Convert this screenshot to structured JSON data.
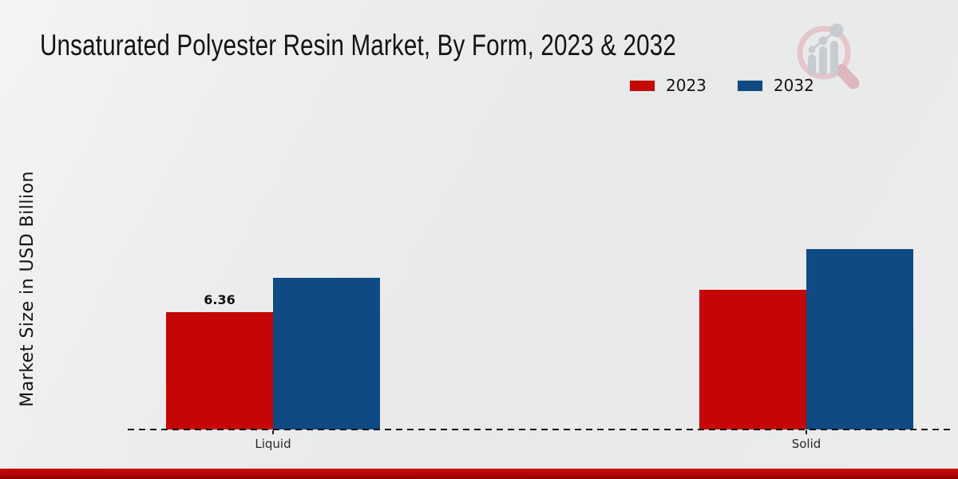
{
  "header": {
    "title": "Unsaturated Polyester Resin Market, By Form, 2023 & 2032"
  },
  "branding": {
    "logo_icon": "magnifier-growth-chart-logo"
  },
  "colors": {
    "series_2023_red": "#c40606",
    "series_2032_blue": "#0f4a85",
    "footer_stripe_red": "#b10404",
    "axis_line": "#161616"
  },
  "chart_data": {
    "type": "bar",
    "title": "Unsaturated Polyester Resin Market, By Form, 2023 & 2032",
    "xlabel": "",
    "ylabel": "Market Size in USD Billion",
    "categories": [
      "Liquid",
      "Solid"
    ],
    "series": [
      {
        "name": "2023",
        "color": "#c40606",
        "values": [
          6.36,
          7.57
        ],
        "data_labels": [
          "6.36",
          ""
        ]
      },
      {
        "name": "2032",
        "color": "#0f4a85",
        "values": [
          8.22,
          9.78
        ],
        "data_labels": [
          "",
          ""
        ]
      }
    ],
    "ylim": [
      0,
      11.5
    ],
    "grid": false,
    "y_axis_ticks_visible": false,
    "legend_position": "top-right",
    "baseline_style": "dashed"
  }
}
